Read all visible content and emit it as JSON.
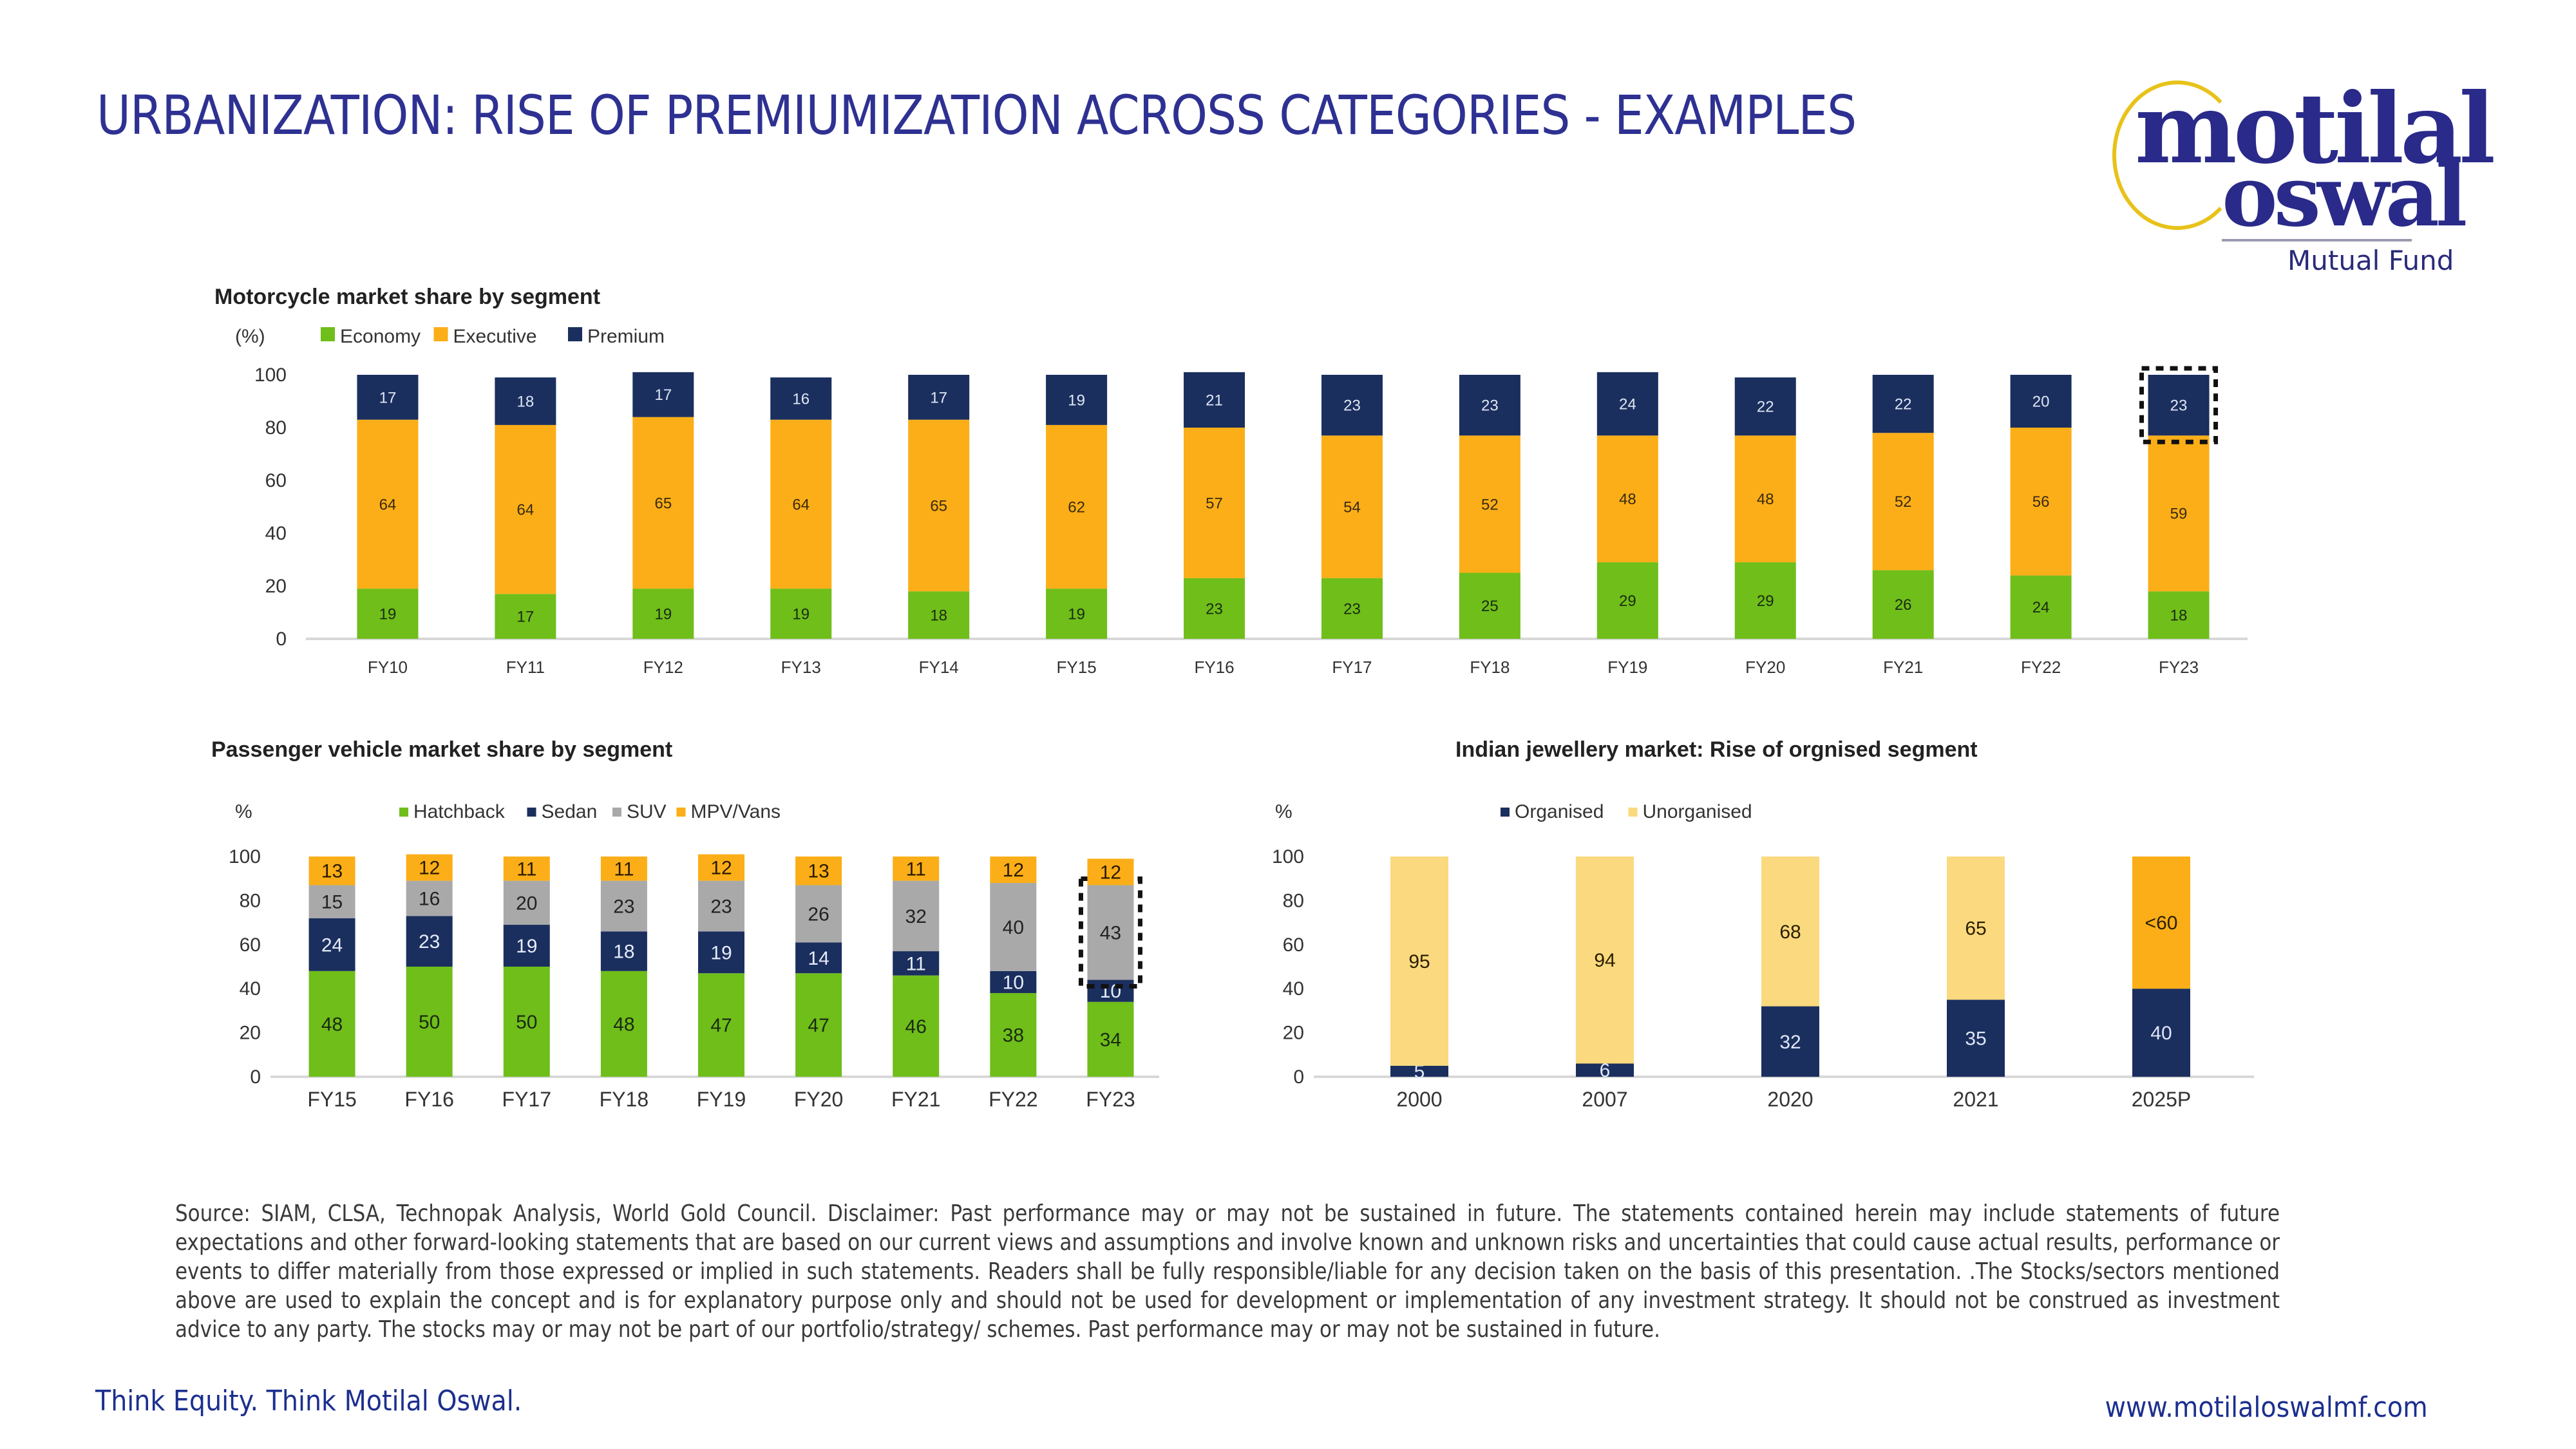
{
  "header": {
    "title": "URBANIZATION: RISE OF PREMIUMIZATION ACROSS CATEGORIES - EXAMPLES",
    "logo": {
      "line1": "motilal",
      "line2": "oswal",
      "tagline": "Mutual Fund"
    }
  },
  "colors": {
    "green": "#6fbe1a",
    "orange": "#fbae17",
    "navy": "#1b2f5e",
    "gray": "#a9a9a9",
    "light_yellow": "#fbd97e",
    "brand_blue": "#2e3192"
  },
  "chart_data": [
    {
      "id": "motorcycle",
      "type": "bar",
      "stacked": true,
      "title": "Motorcycle market share by segment",
      "ylabel": "(%)",
      "ylim": [
        0,
        100
      ],
      "yticks": [
        "0",
        "20",
        "40",
        "60",
        "80",
        "100"
      ],
      "categories": [
        "FY10",
        "FY11",
        "FY12",
        "FY13",
        "FY14",
        "FY15",
        "FY16",
        "FY17",
        "FY18",
        "FY19",
        "FY20",
        "FY21",
        "FY22",
        "FY23"
      ],
      "series": [
        {
          "name": "Economy",
          "color": "#6fbe1a",
          "label_color": "#1a2a10",
          "values": [
            19,
            17,
            19,
            19,
            18,
            19,
            23,
            23,
            25,
            29,
            29,
            26,
            24,
            18
          ]
        },
        {
          "name": "Executive",
          "color": "#fbae17",
          "label_color": "#3a2a10",
          "values": [
            64,
            64,
            65,
            64,
            65,
            62,
            57,
            54,
            52,
            48,
            48,
            52,
            56,
            59
          ]
        },
        {
          "name": "Premium",
          "color": "#1b2f5e",
          "label_color": "#dfe6f5",
          "values": [
            17,
            18,
            17,
            16,
            17,
            19,
            21,
            23,
            23,
            24,
            22,
            22,
            20,
            23
          ]
        }
      ],
      "legend": "top-left",
      "highlight": {
        "category": "FY23",
        "series": "Premium"
      }
    },
    {
      "id": "passenger",
      "type": "bar",
      "stacked": true,
      "title": "Passenger vehicle market share by segment",
      "ylabel": "%",
      "ylim": [
        0,
        100
      ],
      "yticks": [
        "0",
        "20",
        "40",
        "60",
        "80",
        "100"
      ],
      "categories": [
        "FY15",
        "FY16",
        "FY17",
        "FY18",
        "FY19",
        "FY20",
        "FY21",
        "FY22",
        "FY23"
      ],
      "series": [
        {
          "name": "Hatchback",
          "color": "#6fbe1a",
          "label_color": "#1a2a10",
          "values": [
            48,
            50,
            50,
            48,
            47,
            47,
            46,
            38,
            34
          ]
        },
        {
          "name": "Sedan",
          "color": "#1b2f5e",
          "label_color": "#e6ecf7",
          "values": [
            24,
            23,
            19,
            18,
            19,
            14,
            11,
            10,
            10
          ]
        },
        {
          "name": "SUV",
          "color": "#a9a9a9",
          "label_color": "#222222",
          "values": [
            15,
            16,
            20,
            23,
            23,
            26,
            32,
            40,
            43
          ]
        },
        {
          "name": "MPV/Vans",
          "color": "#fbae17",
          "label_color": "#2a1a00",
          "values": [
            13,
            12,
            11,
            11,
            12,
            13,
            11,
            12,
            12
          ]
        }
      ],
      "legend": "top-right",
      "highlight": {
        "category": "FY23",
        "series": "SUV"
      }
    },
    {
      "id": "jewellery",
      "type": "bar",
      "stacked": true,
      "title": "Indian jewellery market: Rise of orgnised segment",
      "ylabel": "%",
      "ylim": [
        0,
        100
      ],
      "yticks": [
        "0",
        "20",
        "40",
        "60",
        "80",
        "100"
      ],
      "categories": [
        "2000",
        "2007",
        "2020",
        "2021",
        "2025P"
      ],
      "series": [
        {
          "name": "Organised",
          "color": "#1b2f5e",
          "label_color": "#dfe6f5",
          "values": [
            5,
            6,
            32,
            35,
            40
          ],
          "labels": [
            "5",
            "6",
            "32",
            "35",
            "40"
          ]
        },
        {
          "name": "Unorganised",
          "color": "#fbd97e",
          "label_color": "#2a2000",
          "values": [
            95,
            94,
            68,
            65,
            60
          ],
          "labels": [
            "95",
            "94",
            "68",
            "65",
            "<60"
          ],
          "bar_colors": [
            "#fbd97e",
            "#fbd97e",
            "#fbd97e",
            "#fbd97e",
            "#fbae17"
          ]
        }
      ],
      "legend": "top-center"
    }
  ],
  "disclaimer": "Source: SIAM, CLSA, Technopak Analysis, World Gold Council. Disclaimer: Past performance may or may not be sustained in future. The statements contained herein may include statements of future expectations and other forward-looking statements that are based on our current views and assumptions and involve known and unknown risks and uncertainties that could cause actual results, performance or events to differ materially from those expressed or implied in such statements. Readers shall be fully responsible/liable for any decision taken on the basis of this presentation. .The Stocks/sectors mentioned above are used to explain the concept and is for explanatory purpose only and should not be used for development or implementation of any investment strategy. It should not be construed as investment advice to any party. The stocks may or may not be part of our portfolio/strategy/ schemes. Past performance may or may not be sustained in future.",
  "footer": {
    "tagline": "Think Equity. Think Motilal Oswal.",
    "website": "www.motilaloswalmf.com"
  }
}
